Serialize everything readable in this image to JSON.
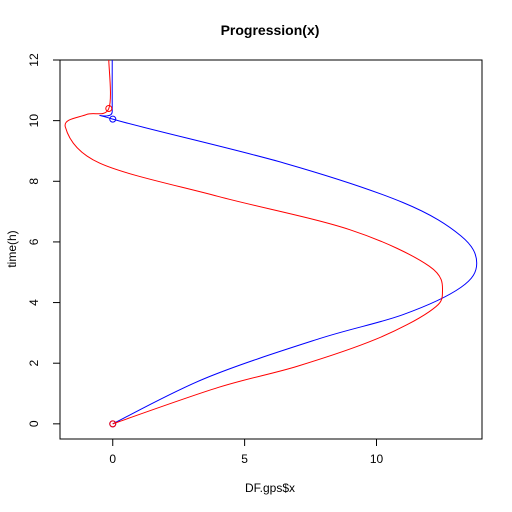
{
  "chart_data": {
    "type": "line",
    "title": "Progression(x)",
    "xlabel": "DF.gps$x",
    "ylabel": "time(h)",
    "xlim": [
      -2.0,
      14.0
    ],
    "ylim": [
      -0.5,
      12.0
    ],
    "x_ticks": [
      0,
      5,
      10
    ],
    "y_ticks": [
      0,
      2,
      4,
      6,
      8,
      10,
      12
    ],
    "grid": false,
    "colors": {
      "axis": "#000000"
    },
    "series": [
      {
        "color": "#0000ff",
        "points": [
          [
            0,
            0
          ],
          [
            3.5,
            1.5
          ],
          [
            7.8,
            2.8
          ],
          [
            11.0,
            3.6
          ],
          [
            13.2,
            4.5
          ],
          [
            13.8,
            5.3
          ],
          [
            13.2,
            6.2
          ],
          [
            11.0,
            7.3
          ],
          [
            6.5,
            8.6
          ],
          [
            0,
            10.05
          ],
          [
            -0.02,
            10.3
          ],
          [
            -0.02,
            12.0
          ]
        ],
        "markers": [
          [
            0,
            0
          ],
          [
            0,
            10.05
          ]
        ]
      },
      {
        "color": "#ff0000",
        "points": [
          [
            0,
            0
          ],
          [
            4.0,
            1.2
          ],
          [
            7.0,
            1.9
          ],
          [
            10.0,
            2.8
          ],
          [
            12.0,
            3.7
          ],
          [
            12.5,
            4.3
          ],
          [
            12.0,
            5.2
          ],
          [
            9.0,
            6.4
          ],
          [
            4.0,
            7.5
          ],
          [
            -0.5,
            8.6
          ],
          [
            -1.8,
            9.8
          ],
          [
            -1.0,
            10.2
          ],
          [
            -0.15,
            10.4
          ],
          [
            -0.15,
            12.0
          ]
        ],
        "markers": [
          [
            0,
            0
          ],
          [
            -0.15,
            10.4
          ]
        ]
      }
    ]
  }
}
